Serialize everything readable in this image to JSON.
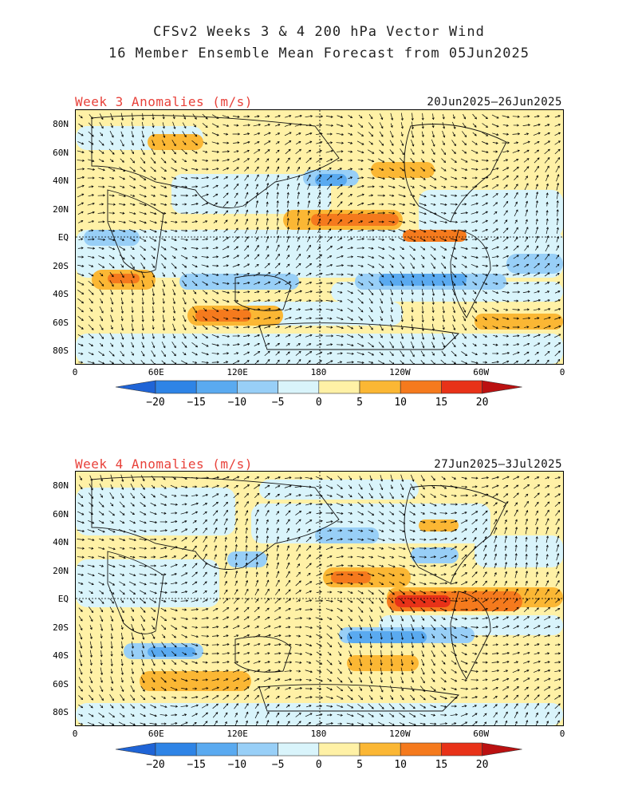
{
  "title": {
    "line1": "CFSv2 Weeks 3 & 4 200 hPa Vector Wind",
    "line2": "16 Member Ensemble Mean Forecast from 05Jun2025"
  },
  "panels": [
    {
      "label": "Week 3 Anomalies (m/s)",
      "date_range": "20Jun2025—26Jun2025"
    },
    {
      "label": "Week 4 Anomalies (m/s)",
      "date_range": "27Jun2025—3Jul2025"
    }
  ],
  "lat_ticks": [
    "80N",
    "60N",
    "40N",
    "20N",
    "EQ",
    "20S",
    "40S",
    "60S",
    "80S"
  ],
  "lon_ticks": [
    "0",
    "60E",
    "120E",
    "180",
    "120W",
    "60W",
    "0"
  ],
  "colorbar": {
    "labels": [
      "−20",
      "−15",
      "−10",
      "−5",
      "0",
      "5",
      "10",
      "15",
      "20"
    ],
    "colors": [
      "#1f64d6",
      "#2e84e6",
      "#5aaaf0",
      "#98cff7",
      "#d9f4fb",
      "#fff1a6",
      "#fbb734",
      "#f57a1d",
      "#e83218",
      "#bb1111"
    ]
  }
}
